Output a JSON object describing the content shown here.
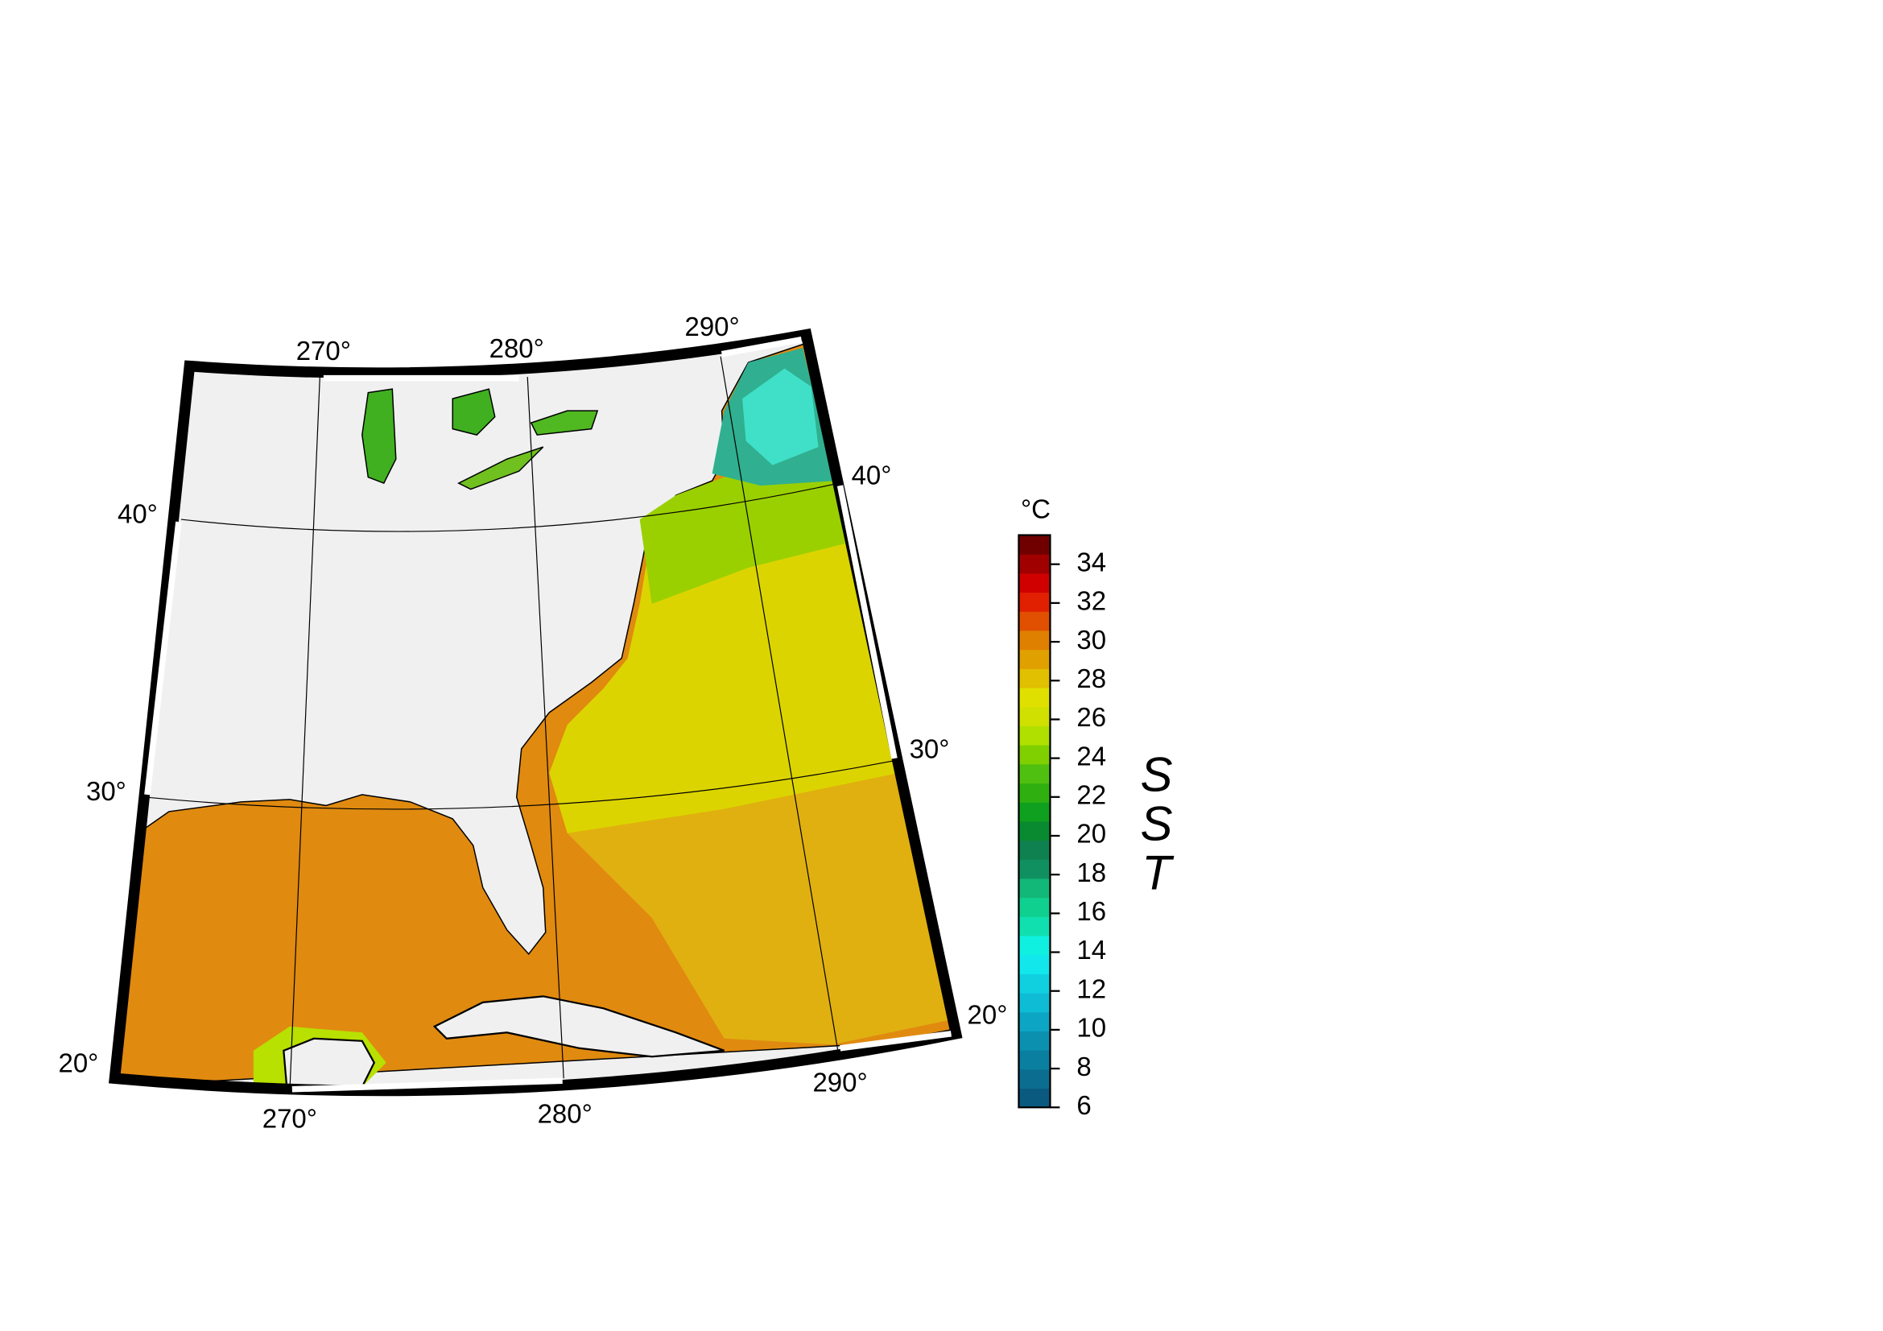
{
  "map": {
    "top_lon_labels": [
      "270°",
      "280°",
      "290°"
    ],
    "bottom_lon_labels": [
      "270°",
      "280°",
      "290°"
    ],
    "left_lat_labels": [
      "40°",
      "30°",
      "20°"
    ],
    "right_lat_labels": [
      "40°",
      "30°",
      "20°"
    ]
  },
  "colorbar": {
    "unit": "°C",
    "title": "SST",
    "range": [
      6,
      35.5
    ],
    "ticks": [
      6,
      8,
      10,
      12,
      14,
      16,
      18,
      20,
      22,
      24,
      26,
      28,
      30,
      32,
      34
    ],
    "colors": [
      "#0a5a80",
      "#0b6e91",
      "#0b7fa0",
      "#0c90b0",
      "#0da5c4",
      "#0fbcd6",
      "#10d0e0",
      "#12e8ec",
      "#10f0e0",
      "#10e0b0",
      "#10d090",
      "#12b878",
      "#109060",
      "#0f8050",
      "#0a8a30",
      "#10a020",
      "#30b010",
      "#50c010",
      "#80d000",
      "#b0e000",
      "#d0e000",
      "#e0e000",
      "#e0c000",
      "#e0a000",
      "#e08000",
      "#e05000",
      "#e02000",
      "#d00000",
      "#a00000",
      "#700000"
    ]
  }
}
